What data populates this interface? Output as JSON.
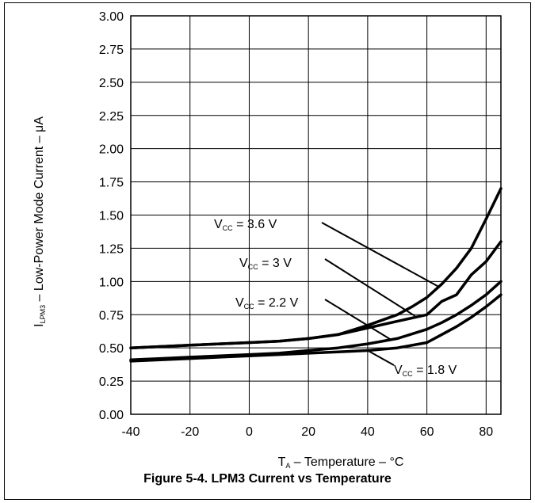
{
  "figure": {
    "caption": "Figure 5-4. LPM3 Current vs Temperature"
  },
  "chart_data": {
    "type": "line",
    "xlabel": {
      "main": "T",
      "sub": "A",
      "rest": " – Temperature – °C"
    },
    "ylabel": {
      "main": "I",
      "sub": "LPM3",
      "rest": " – Low-Power Mode Current – μA"
    },
    "xlim": [
      -40,
      85
    ],
    "ylim": [
      0,
      3
    ],
    "xticks": [
      -40,
      -20,
      0,
      20,
      40,
      60,
      80
    ],
    "xtick_labels": [
      "-40",
      "-20",
      "0",
      "20",
      "40",
      "60",
      "80"
    ],
    "yticks": [
      0,
      0.25,
      0.5,
      0.75,
      1.0,
      1.25,
      1.5,
      1.75,
      2.0,
      2.25,
      2.5,
      2.75,
      3.0
    ],
    "ytick_labels": [
      "0.00",
      "0.25",
      "0.50",
      "0.75",
      "1.00",
      "1.25",
      "1.50",
      "1.75",
      "2.00",
      "2.25",
      "2.50",
      "2.75",
      "3.00"
    ],
    "grid": true,
    "series": [
      {
        "name": "V_CC = 3.6 V",
        "label_main": "V",
        "label_sub": "CC",
        "label_rest": " = 3.6 V",
        "x": [
          -40,
          -30,
          -20,
          -10,
          0,
          10,
          20,
          30,
          40,
          50,
          55,
          60,
          65,
          70,
          75,
          80,
          85
        ],
        "y": [
          0.5,
          0.51,
          0.52,
          0.53,
          0.54,
          0.55,
          0.57,
          0.6,
          0.67,
          0.75,
          0.81,
          0.88,
          0.98,
          1.1,
          1.25,
          1.47,
          1.7
        ],
        "annot_anchor": [
          64,
          0.96
        ]
      },
      {
        "name": "V_CC = 3 V",
        "label_main": "V",
        "label_sub": "CC",
        "label_rest": " = 3 V",
        "x": [
          -40,
          -30,
          -20,
          -10,
          0,
          10,
          20,
          30,
          40,
          50,
          60,
          65,
          70,
          75,
          80,
          85
        ],
        "y": [
          0.5,
          0.51,
          0.52,
          0.53,
          0.54,
          0.55,
          0.57,
          0.6,
          0.65,
          0.7,
          0.75,
          0.85,
          0.9,
          1.05,
          1.15,
          1.3
        ],
        "annot_anchor": [
          56,
          0.74
        ]
      },
      {
        "name": "V_CC = 2.2 V",
        "label_main": "V",
        "label_sub": "CC",
        "label_rest": " = 2.2 V",
        "x": [
          -40,
          -30,
          -20,
          -10,
          0,
          10,
          20,
          30,
          40,
          50,
          60,
          65,
          70,
          75,
          80,
          85
        ],
        "y": [
          0.41,
          0.42,
          0.43,
          0.44,
          0.45,
          0.46,
          0.48,
          0.5,
          0.53,
          0.57,
          0.64,
          0.69,
          0.75,
          0.82,
          0.9,
          1.0
        ],
        "annot_anchor": [
          48,
          0.56
        ]
      },
      {
        "name": "V_CC = 1.8 V",
        "label_main": "V",
        "label_sub": "CC",
        "label_rest": " = 1.8 V",
        "x": [
          -40,
          -30,
          -20,
          -10,
          0,
          10,
          20,
          30,
          40,
          50,
          60,
          65,
          70,
          75,
          80,
          85
        ],
        "y": [
          0.4,
          0.41,
          0.42,
          0.43,
          0.44,
          0.45,
          0.46,
          0.47,
          0.48,
          0.5,
          0.54,
          0.6,
          0.66,
          0.73,
          0.81,
          0.9
        ],
        "annot_anchor": [
          40,
          0.48
        ]
      }
    ]
  }
}
